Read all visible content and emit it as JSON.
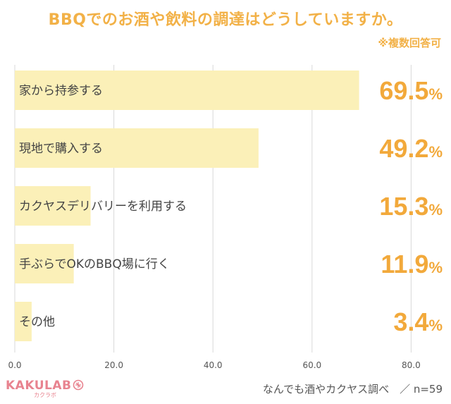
{
  "title": "BBQでのお酒や飲料の調達はどうしていますか。",
  "note": "※複数回答可",
  "brand": {
    "name": "KAKULAB",
    "sub": "カクラボ"
  },
  "source": "なんでも酒やカクヤス調べ　／ n=59",
  "colors": {
    "bar": "#fbf0b8",
    "accent": "#f2a93b",
    "label": "#444444",
    "grid": "#d8d8d8"
  },
  "chart_data": {
    "type": "bar",
    "orientation": "horizontal",
    "categories": [
      "家から持参する",
      "現地で購入する",
      "カクヤスデリバリーを利用する",
      "手ぶらでOKのBBQ場に行く",
      "その他"
    ],
    "values": [
      69.5,
      49.2,
      15.3,
      11.9,
      3.4
    ],
    "value_labels": [
      "69.5",
      "49.2",
      "15.3",
      "11.9",
      "3.4"
    ],
    "unit": "%",
    "xlim": [
      0,
      80
    ],
    "xticks": [
      "0.0",
      "20.0",
      "40.0",
      "60.0",
      "80.0"
    ],
    "grid": true
  }
}
